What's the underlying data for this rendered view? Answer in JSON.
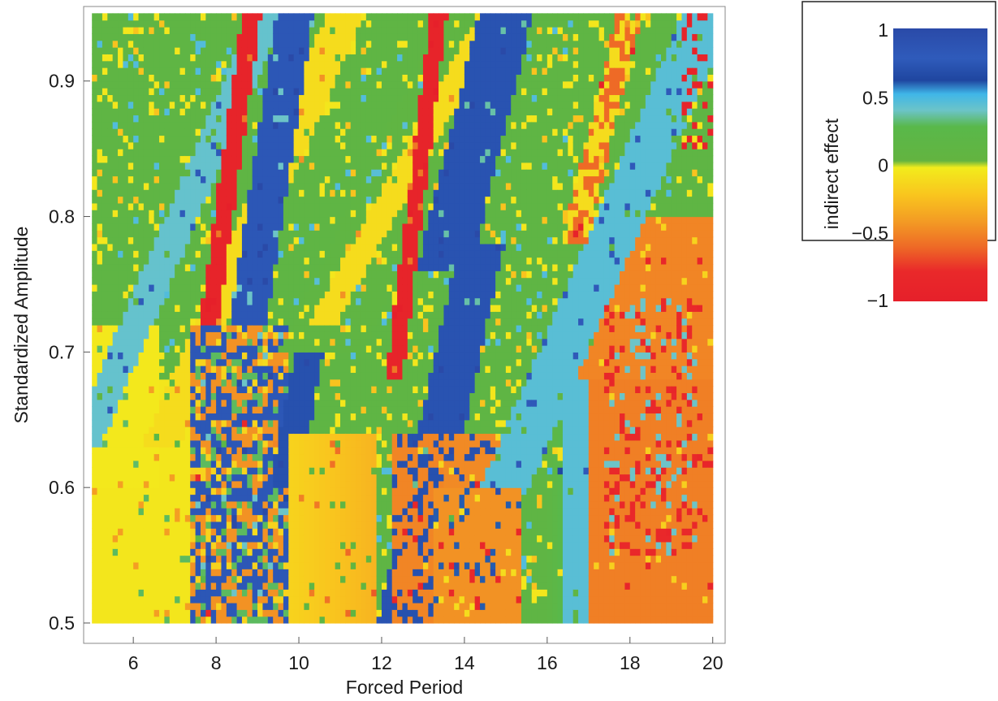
{
  "chart_data": {
    "type": "heatmap",
    "title": "",
    "xlabel": "Forced Period",
    "ylabel": "Standardized Amplitude",
    "xlim": [
      4.8,
      20.3
    ],
    "ylim": [
      0.485,
      0.955
    ],
    "data_x_range": [
      5.0,
      20.0
    ],
    "data_y_range": [
      0.5,
      0.95
    ],
    "grid_cols": 120,
    "grid_rows": 90,
    "xticks": [
      6,
      8,
      10,
      12,
      14,
      16,
      18,
      20
    ],
    "yticks": [
      0.5,
      0.6,
      0.7,
      0.8,
      0.9
    ],
    "xtick_labels": [
      "6",
      "8",
      "10",
      "12",
      "14",
      "16",
      "18",
      "20"
    ],
    "ytick_labels": [
      "0.5",
      "0.6",
      "0.7",
      "0.8",
      "0.9"
    ],
    "grid": false,
    "colorbar": {
      "label": "indirect effect",
      "range": [
        -1,
        1
      ],
      "ticks": [
        1,
        0.5,
        0,
        -0.5,
        -1
      ],
      "tick_labels": [
        "1",
        "0.5",
        "0",
        "−0.5",
        "−1"
      ],
      "stops": [
        {
          "value": 1.0,
          "color": "#2a4aa8"
        },
        {
          "value": 0.78,
          "color": "#2f5bbb"
        },
        {
          "value": 0.62,
          "color": "#1f46a0"
        },
        {
          "value": 0.52,
          "color": "#3fb6e8"
        },
        {
          "value": 0.4,
          "color": "#6cc4c8"
        },
        {
          "value": 0.28,
          "color": "#59b84a"
        },
        {
          "value": 0.03,
          "color": "#63b440"
        },
        {
          "value": -0.02,
          "color": "#f2ec1c"
        },
        {
          "value": -0.22,
          "color": "#f9c51e"
        },
        {
          "value": -0.42,
          "color": "#f39a24"
        },
        {
          "value": -0.6,
          "color": "#ee6a26"
        },
        {
          "value": -0.78,
          "color": "#e9292a"
        },
        {
          "value": -1.0,
          "color": "#e6202a"
        }
      ]
    },
    "regions_description_values": [
      {
        "x": [
          5.0,
          7.5
        ],
        "y": [
          0.5,
          0.65
        ],
        "value": -0.05
      },
      {
        "x": [
          9.8,
          11.5
        ],
        "y": [
          0.5,
          0.65
        ],
        "value": -0.22
      },
      {
        "x": [
          12.5,
          15.4
        ],
        "y": [
          0.5,
          0.65
        ],
        "value": -0.45
      },
      {
        "x": [
          15.6,
          16.4
        ],
        "y": [
          0.5,
          0.7
        ],
        "value": 0.15
      },
      {
        "x": [
          17.2,
          20.0
        ],
        "y": [
          0.5,
          0.7
        ],
        "value": -0.55
      },
      {
        "x": [
          5.0,
          8.0
        ],
        "y": [
          0.75,
          0.95
        ],
        "value": 0.1
      },
      {
        "x": [
          13.5,
          15.0
        ],
        "y": [
          0.8,
          0.92
        ],
        "value": 0.75
      },
      {
        "x": [
          8.0,
          8.5
        ],
        "y": [
          0.72,
          0.92
        ],
        "value": -0.9
      }
    ]
  }
}
